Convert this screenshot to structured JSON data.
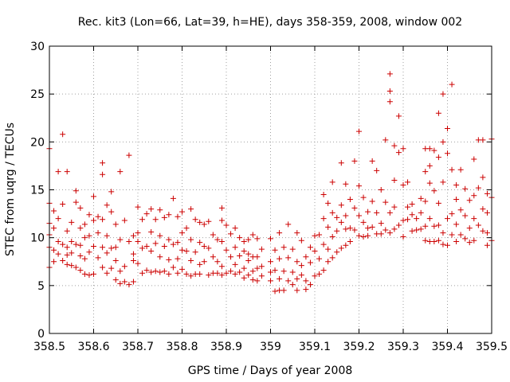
{
  "chart_data": {
    "type": "scatter",
    "title": "Rec. kit3 (Lon=66, Lat=39, h=HE), days 358-359, 2008, window 002",
    "xlabel": "GPS time / Days of year 2008",
    "ylabel": "STEC from uqrg / TECUs",
    "xlim": [
      358.5,
      359.5
    ],
    "ylim": [
      0,
      30
    ],
    "x_ticks": [
      "358.5",
      "358.6",
      "358.7",
      "358.8",
      "358.9",
      "359",
      "359.1",
      "359.2",
      "359.3",
      "359.4",
      "359.5"
    ],
    "y_ticks": [
      "0",
      "5",
      "10",
      "15",
      "20",
      "25",
      "30"
    ],
    "grid": true,
    "marker": "+",
    "color": "#cc0000",
    "points": [
      [
        358.5,
        19.3
      ],
      [
        358.5,
        13.6
      ],
      [
        358.5,
        11.5
      ],
      [
        358.5,
        10.3
      ],
      [
        358.5,
        9.0
      ],
      [
        358.5,
        6.9
      ],
      [
        358.51,
        12.8
      ],
      [
        358.51,
        11.0
      ],
      [
        358.51,
        8.7
      ],
      [
        358.51,
        7.5
      ],
      [
        358.52,
        16.9
      ],
      [
        358.52,
        12.0
      ],
      [
        358.52,
        9.6
      ],
      [
        358.52,
        8.3
      ],
      [
        358.53,
        20.8
      ],
      [
        358.53,
        13.5
      ],
      [
        358.53,
        9.3
      ],
      [
        358.53,
        7.6
      ],
      [
        358.54,
        16.9
      ],
      [
        358.54,
        10.7
      ],
      [
        358.54,
        9.0
      ],
      [
        358.54,
        8.2
      ],
      [
        358.54,
        7.2
      ],
      [
        358.55,
        11.6
      ],
      [
        358.55,
        9.6
      ],
      [
        358.55,
        8.4
      ],
      [
        358.55,
        7.1
      ],
      [
        358.56,
        14.9
      ],
      [
        358.56,
        13.7
      ],
      [
        358.56,
        9.3
      ],
      [
        358.56,
        6.9
      ],
      [
        358.57,
        13.1
      ],
      [
        358.57,
        11.0
      ],
      [
        358.57,
        9.2
      ],
      [
        358.57,
        8.1
      ],
      [
        358.57,
        6.6
      ],
      [
        358.58,
        11.4
      ],
      [
        358.58,
        10.0
      ],
      [
        358.58,
        7.8
      ],
      [
        358.58,
        6.2
      ],
      [
        358.59,
        12.4
      ],
      [
        358.59,
        10.2
      ],
      [
        358.59,
        8.5
      ],
      [
        358.59,
        6.1
      ],
      [
        358.6,
        14.3
      ],
      [
        358.6,
        11.8
      ],
      [
        358.6,
        9.1
      ],
      [
        358.6,
        6.2
      ],
      [
        358.61,
        12.2
      ],
      [
        358.61,
        10.5
      ],
      [
        358.61,
        7.9
      ],
      [
        358.62,
        17.8
      ],
      [
        358.62,
        16.6
      ],
      [
        358.62,
        11.9
      ],
      [
        358.62,
        9.0
      ],
      [
        358.62,
        6.9
      ],
      [
        358.63,
        13.4
      ],
      [
        358.63,
        10.2
      ],
      [
        358.63,
        8.4
      ],
      [
        358.63,
        6.3
      ],
      [
        358.64,
        14.8
      ],
      [
        358.64,
        12.7
      ],
      [
        358.64,
        8.9
      ],
      [
        358.64,
        6.8
      ],
      [
        358.65,
        11.4
      ],
      [
        358.65,
        9.0
      ],
      [
        358.65,
        7.6
      ],
      [
        358.65,
        5.6
      ],
      [
        358.66,
        16.9
      ],
      [
        358.66,
        9.8
      ],
      [
        358.66,
        6.5
      ],
      [
        358.66,
        5.2
      ],
      [
        358.67,
        11.8
      ],
      [
        358.67,
        7.0
      ],
      [
        358.67,
        5.4
      ],
      [
        358.68,
        18.6
      ],
      [
        358.68,
        9.6
      ],
      [
        358.68,
        5.1
      ],
      [
        358.69,
        10.2
      ],
      [
        358.69,
        8.3
      ],
      [
        358.69,
        7.6
      ],
      [
        358.69,
        5.4
      ],
      [
        358.7,
        13.2
      ],
      [
        358.7,
        10.5
      ],
      [
        358.7,
        9.6
      ],
      [
        358.7,
        7.3
      ],
      [
        358.71,
        11.9
      ],
      [
        358.71,
        8.9
      ],
      [
        358.71,
        6.3
      ],
      [
        358.72,
        12.5
      ],
      [
        358.72,
        9.1
      ],
      [
        358.72,
        6.6
      ],
      [
        358.73,
        13.0
      ],
      [
        358.73,
        10.6
      ],
      [
        358.73,
        8.6
      ],
      [
        358.73,
        6.4
      ],
      [
        358.74,
        11.9
      ],
      [
        358.74,
        9.4
      ],
      [
        358.74,
        6.5
      ],
      [
        358.75,
        12.9
      ],
      [
        358.75,
        10.2
      ],
      [
        358.75,
        8.0
      ],
      [
        358.75,
        6.4
      ],
      [
        358.76,
        12.1
      ],
      [
        358.76,
        9.1
      ],
      [
        358.76,
        6.5
      ],
      [
        358.77,
        12.4
      ],
      [
        358.77,
        9.8
      ],
      [
        358.77,
        7.7
      ],
      [
        358.77,
        6.2
      ],
      [
        358.78,
        14.1
      ],
      [
        358.78,
        9.3
      ],
      [
        358.78,
        6.9
      ],
      [
        358.79,
        12.2
      ],
      [
        358.79,
        9.5
      ],
      [
        358.79,
        7.8
      ],
      [
        358.79,
        6.3
      ],
      [
        358.8,
        12.7
      ],
      [
        358.8,
        10.5
      ],
      [
        358.8,
        8.7
      ],
      [
        358.8,
        6.7
      ],
      [
        358.81,
        11.0
      ],
      [
        358.81,
        8.6
      ],
      [
        358.81,
        6.2
      ],
      [
        358.82,
        13.0
      ],
      [
        358.82,
        9.8
      ],
      [
        358.82,
        7.6
      ],
      [
        358.82,
        6.0
      ],
      [
        358.83,
        11.9
      ],
      [
        358.83,
        8.5
      ],
      [
        358.83,
        6.2
      ],
      [
        358.84,
        11.6
      ],
      [
        358.84,
        9.5
      ],
      [
        358.84,
        7.2
      ],
      [
        358.84,
        6.2
      ],
      [
        358.85,
        11.4
      ],
      [
        358.85,
        9.1
      ],
      [
        358.85,
        7.5
      ],
      [
        358.86,
        11.7
      ],
      [
        358.86,
        8.9
      ],
      [
        358.86,
        6.1
      ],
      [
        358.87,
        10.3
      ],
      [
        358.87,
        8.0
      ],
      [
        358.87,
        6.3
      ],
      [
        358.88,
        9.8
      ],
      [
        358.88,
        7.5
      ],
      [
        358.88,
        6.3
      ],
      [
        358.89,
        13.1
      ],
      [
        358.89,
        11.8
      ],
      [
        358.89,
        9.6
      ],
      [
        358.89,
        7.0
      ],
      [
        358.89,
        6.1
      ],
      [
        358.9,
        11.3
      ],
      [
        358.9,
        8.7
      ],
      [
        358.9,
        6.3
      ],
      [
        358.91,
        10.4
      ],
      [
        358.91,
        8.0
      ],
      [
        358.91,
        6.5
      ],
      [
        358.92,
        11.0
      ],
      [
        358.92,
        9.0
      ],
      [
        358.92,
        7.2
      ],
      [
        358.92,
        6.2
      ],
      [
        358.93,
        10.0
      ],
      [
        358.93,
        8.1
      ],
      [
        358.93,
        6.4
      ],
      [
        358.94,
        9.6
      ],
      [
        358.94,
        8.6
      ],
      [
        358.94,
        6.8
      ],
      [
        358.94,
        5.8
      ],
      [
        358.95,
        9.8
      ],
      [
        358.95,
        8.3
      ],
      [
        358.95,
        7.6
      ],
      [
        358.95,
        6.1
      ],
      [
        358.96,
        10.3
      ],
      [
        358.96,
        8.0
      ],
      [
        358.96,
        6.5
      ],
      [
        358.96,
        5.6
      ],
      [
        358.97,
        9.9
      ],
      [
        358.97,
        8.0
      ],
      [
        358.97,
        6.8
      ],
      [
        358.97,
        5.5
      ],
      [
        358.98,
        8.8
      ],
      [
        358.98,
        7.0
      ],
      [
        358.98,
        6.0
      ],
      [
        359.0,
        9.9
      ],
      [
        359.0,
        7.5
      ],
      [
        359.0,
        6.4
      ],
      [
        359.0,
        5.5
      ],
      [
        359.01,
        8.7
      ],
      [
        359.01,
        6.6
      ],
      [
        359.01,
        4.4
      ],
      [
        359.02,
        10.5
      ],
      [
        359.02,
        7.8
      ],
      [
        359.02,
        5.7
      ],
      [
        359.02,
        4.5
      ],
      [
        359.03,
        9.0
      ],
      [
        359.03,
        6.5
      ],
      [
        359.03,
        4.5
      ],
      [
        359.04,
        11.4
      ],
      [
        359.04,
        7.9
      ],
      [
        359.04,
        5.5
      ],
      [
        359.05,
        8.8
      ],
      [
        359.05,
        6.4
      ],
      [
        359.05,
        5.1
      ],
      [
        359.06,
        10.5
      ],
      [
        359.06,
        7.5
      ],
      [
        359.06,
        5.7
      ],
      [
        359.06,
        4.5
      ],
      [
        359.07,
        9.7
      ],
      [
        359.07,
        7.1
      ],
      [
        359.07,
        6.1
      ],
      [
        359.08,
        8.0
      ],
      [
        359.08,
        5.5
      ],
      [
        359.08,
        4.6
      ],
      [
        359.09,
        9.0
      ],
      [
        359.09,
        7.4
      ],
      [
        359.09,
        5.1
      ],
      [
        359.1,
        10.2
      ],
      [
        359.1,
        8.6
      ],
      [
        359.1,
        6.0
      ],
      [
        359.11,
        10.3
      ],
      [
        359.11,
        7.8
      ],
      [
        359.11,
        6.2
      ],
      [
        359.12,
        14.5
      ],
      [
        359.12,
        12.0
      ],
      [
        359.12,
        9.3
      ],
      [
        359.12,
        6.6
      ],
      [
        359.13,
        13.6
      ],
      [
        359.13,
        11.1
      ],
      [
        359.13,
        8.8
      ],
      [
        359.13,
        7.5
      ],
      [
        359.14,
        15.8
      ],
      [
        359.14,
        12.6
      ],
      [
        359.14,
        10.1
      ],
      [
        359.14,
        7.9
      ],
      [
        359.15,
        12.1
      ],
      [
        359.15,
        10.7
      ],
      [
        359.15,
        8.5
      ],
      [
        359.16,
        17.8
      ],
      [
        359.16,
        13.4
      ],
      [
        359.16,
        11.6
      ],
      [
        359.16,
        8.9
      ],
      [
        359.17,
        15.6
      ],
      [
        359.17,
        12.3
      ],
      [
        359.17,
        10.9
      ],
      [
        359.17,
        9.2
      ],
      [
        359.18,
        14.0
      ],
      [
        359.18,
        11.0
      ],
      [
        359.18,
        9.6
      ],
      [
        359.19,
        18.0
      ],
      [
        359.19,
        13.1
      ],
      [
        359.19,
        10.8
      ],
      [
        359.2,
        21.1
      ],
      [
        359.2,
        15.4
      ],
      [
        359.2,
        12.3
      ],
      [
        359.2,
        10.2
      ],
      [
        359.21,
        14.2
      ],
      [
        359.21,
        11.6
      ],
      [
        359.21,
        10.1
      ],
      [
        359.22,
        12.7
      ],
      [
        359.22,
        11.0
      ],
      [
        359.22,
        10.2
      ],
      [
        359.23,
        18.0
      ],
      [
        359.23,
        13.8
      ],
      [
        359.23,
        11.1
      ],
      [
        359.24,
        17.0
      ],
      [
        359.24,
        12.6
      ],
      [
        359.24,
        10.4
      ],
      [
        359.25,
        15.0
      ],
      [
        359.25,
        11.5
      ],
      [
        359.25,
        10.4
      ],
      [
        359.26,
        20.2
      ],
      [
        359.26,
        13.7
      ],
      [
        359.26,
        10.8
      ],
      [
        359.27,
        27.1
      ],
      [
        359.27,
        25.3
      ],
      [
        359.27,
        24.2
      ],
      [
        359.27,
        12.6
      ],
      [
        359.27,
        10.5
      ],
      [
        359.28,
        19.6
      ],
      [
        359.28,
        16.0
      ],
      [
        359.28,
        13.2
      ],
      [
        359.28,
        10.9
      ],
      [
        359.29,
        22.7
      ],
      [
        359.29,
        18.9
      ],
      [
        359.29,
        11.3
      ],
      [
        359.3,
        19.3
      ],
      [
        359.3,
        15.5
      ],
      [
        359.3,
        11.8
      ],
      [
        359.3,
        10.1
      ],
      [
        359.31,
        15.8
      ],
      [
        359.31,
        13.2
      ],
      [
        359.31,
        11.9
      ],
      [
        359.32,
        13.5
      ],
      [
        359.32,
        12.4
      ],
      [
        359.32,
        10.7
      ],
      [
        359.33,
        12.0
      ],
      [
        359.33,
        10.8
      ],
      [
        359.34,
        14.1
      ],
      [
        359.34,
        12.6
      ],
      [
        359.34,
        10.9
      ],
      [
        359.35,
        19.3
      ],
      [
        359.35,
        16.9
      ],
      [
        359.35,
        13.8
      ],
      [
        359.35,
        11.2
      ],
      [
        359.35,
        9.7
      ],
      [
        359.36,
        19.3
      ],
      [
        359.36,
        17.5
      ],
      [
        359.36,
        15.7
      ],
      [
        359.36,
        12.0
      ],
      [
        359.36,
        9.6
      ],
      [
        359.37,
        19.1
      ],
      [
        359.37,
        14.9
      ],
      [
        359.37,
        11.2
      ],
      [
        359.37,
        9.6
      ],
      [
        359.38,
        23.0
      ],
      [
        359.38,
        18.4
      ],
      [
        359.38,
        13.6
      ],
      [
        359.38,
        11.3
      ],
      [
        359.38,
        9.7
      ],
      [
        359.39,
        25.0
      ],
      [
        359.39,
        20.0
      ],
      [
        359.39,
        15.8
      ],
      [
        359.39,
        10.5
      ],
      [
        359.39,
        9.3
      ],
      [
        359.4,
        21.4
      ],
      [
        359.4,
        18.8
      ],
      [
        359.4,
        12.0
      ],
      [
        359.4,
        9.2
      ],
      [
        359.41,
        26.0
      ],
      [
        359.41,
        17.1
      ],
      [
        359.41,
        12.5
      ],
      [
        359.41,
        10.3
      ],
      [
        359.42,
        15.5
      ],
      [
        359.42,
        14.0
      ],
      [
        359.42,
        11.4
      ],
      [
        359.42,
        9.6
      ],
      [
        359.43,
        17.1
      ],
      [
        359.43,
        12.9
      ],
      [
        359.43,
        10.3
      ],
      [
        359.44,
        15.1
      ],
      [
        359.44,
        12.3
      ],
      [
        359.44,
        9.9
      ],
      [
        359.45,
        13.9
      ],
      [
        359.45,
        11.0
      ],
      [
        359.45,
        9.5
      ],
      [
        359.46,
        18.2
      ],
      [
        359.46,
        14.4
      ],
      [
        359.46,
        12.0
      ],
      [
        359.46,
        9.7
      ],
      [
        359.47,
        20.2
      ],
      [
        359.47,
        15.2
      ],
      [
        359.47,
        11.3
      ],
      [
        359.48,
        20.2
      ],
      [
        359.48,
        16.3
      ],
      [
        359.48,
        13.0
      ],
      [
        359.48,
        10.7
      ],
      [
        359.49,
        14.6
      ],
      [
        359.49,
        12.6
      ],
      [
        359.49,
        10.5
      ],
      [
        359.49,
        9.2
      ],
      [
        359.5,
        20.3
      ],
      [
        359.5,
        14.2
      ],
      [
        359.5,
        9.7
      ]
    ]
  }
}
